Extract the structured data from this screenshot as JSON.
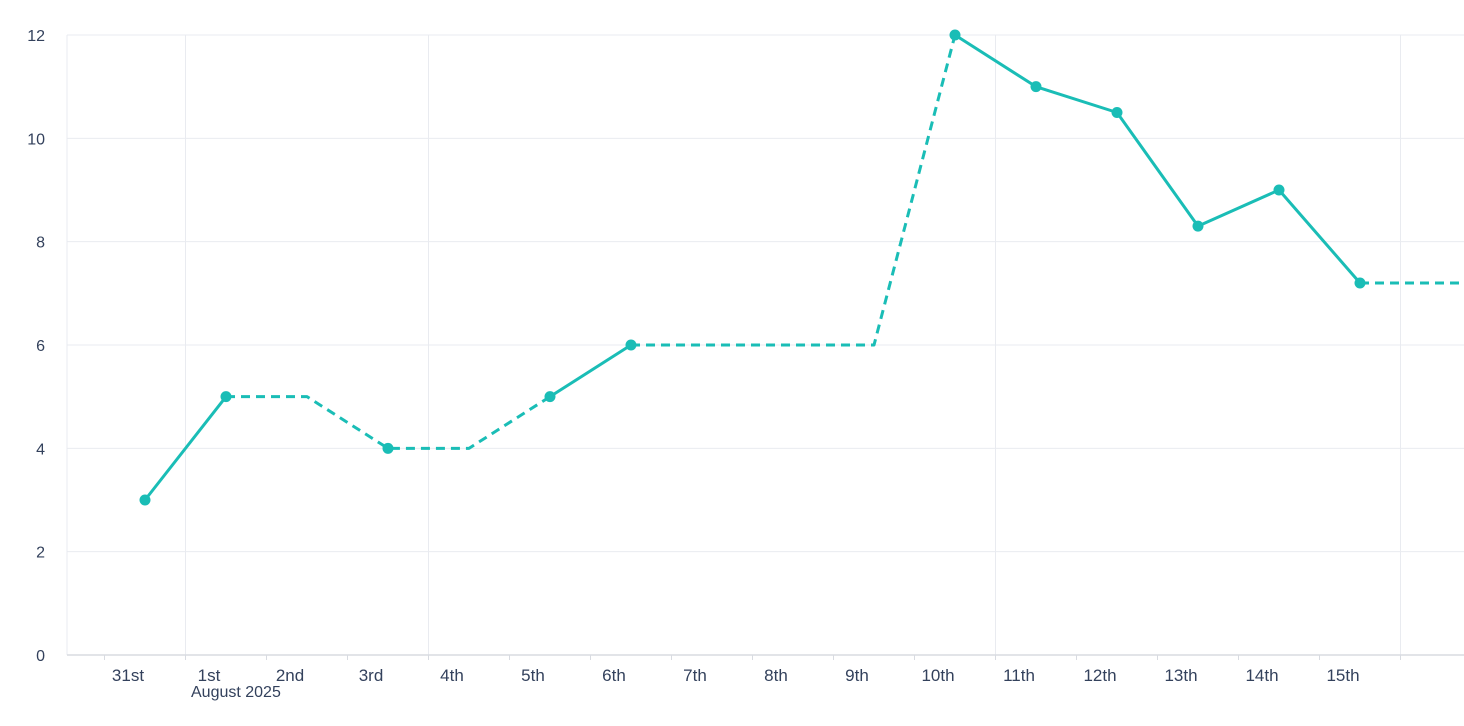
{
  "chart_data": {
    "type": "line",
    "title": "",
    "xlabel": "August 2025",
    "ylabel": "",
    "ylim": [
      0,
      12
    ],
    "y_ticks": [
      0,
      2,
      4,
      6,
      8,
      10,
      12
    ],
    "x_tick_labels": [
      "31st",
      "1st",
      "2nd",
      "3rd",
      "4th",
      "5th",
      "6th",
      "7th",
      "8th",
      "9th",
      "10th",
      "11th",
      "12th",
      "13th",
      "14th",
      "15th"
    ],
    "grid": {
      "horizontal": true,
      "vertical_boundaries": [
        0.5,
        3.5,
        10.5,
        15.5
      ]
    },
    "legend": "none",
    "style": {
      "background": "#ffffff",
      "text_color": "#33415c",
      "grid_color": "#e9ebf0",
      "axis_color": "#d8dbe1",
      "dash_pattern": "9 6"
    },
    "series": [
      {
        "name": "daily-value",
        "color": "#1abdb6",
        "segments": [
          {
            "style": "solid",
            "points": [
              [
                0,
                3
              ],
              [
                1,
                5
              ]
            ]
          },
          {
            "style": "dashed",
            "points": [
              [
                1,
                5
              ],
              [
                2,
                5
              ],
              [
                3,
                4
              ],
              [
                4,
                4
              ],
              [
                5,
                5
              ]
            ]
          },
          {
            "style": "solid",
            "points": [
              [
                5,
                5
              ],
              [
                6,
                6
              ]
            ]
          },
          {
            "style": "dashed",
            "points": [
              [
                6,
                6
              ],
              [
                9,
                6
              ],
              [
                10,
                12
              ]
            ]
          },
          {
            "style": "solid",
            "points": [
              [
                10,
                12
              ],
              [
                11,
                11
              ],
              [
                12,
                10.5
              ],
              [
                13,
                8.3
              ],
              [
                14,
                9
              ],
              [
                15,
                7.2
              ]
            ]
          },
          {
            "style": "dashed",
            "points": [
              [
                15,
                7.2
              ],
              [
                16.4,
                7.2
              ]
            ]
          }
        ],
        "marker_points": [
          [
            0,
            3
          ],
          [
            1,
            5
          ],
          [
            3,
            4
          ],
          [
            5,
            5
          ],
          [
            6,
            6
          ],
          [
            10,
            12
          ],
          [
            11,
            11
          ],
          [
            12,
            10.5
          ],
          [
            13,
            8.3
          ],
          [
            14,
            9
          ],
          [
            15,
            7.2
          ]
        ],
        "values_by_label": {
          "31st": 3,
          "1st": 5,
          "2nd": 5,
          "3rd": 4,
          "4th": 4,
          "5th": 5,
          "6th": 6,
          "7th": 6,
          "8th": 6,
          "9th": 6,
          "10th": 12,
          "11th": 11,
          "12th": 10.5,
          "13th": 8.3,
          "14th": 9,
          "15th": 7.2
        }
      }
    ]
  }
}
